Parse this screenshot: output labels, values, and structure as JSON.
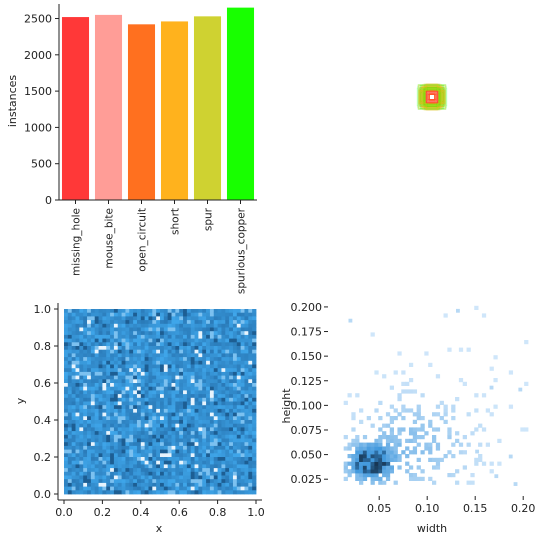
{
  "colors": {
    "axis": "#222222",
    "hist_low": "#cfe6fa",
    "hist_high": "#1a4f80",
    "uniform_base": "#3fa0e6"
  },
  "chart_data": [
    {
      "type": "bar",
      "ylabel": "instances",
      "xlabel": "",
      "ylim": [
        0,
        2700
      ],
      "yticks": [
        0,
        500,
        1000,
        1500,
        2000,
        2500
      ],
      "categories": [
        "missing_hole",
        "mouse_bite",
        "open_circuit",
        "short",
        "spur",
        "spurious_copper"
      ],
      "values": [
        2520,
        2550,
        2420,
        2460,
        2530,
        2650
      ],
      "bar_colors": [
        "#ff3838",
        "#ff9d97",
        "#ff701f",
        "#ffb21d",
        "#cfd231",
        "#18ff00"
      ]
    },
    {
      "type": "scatter",
      "description_free": true,
      "points_center": [
        0.5,
        0.5
      ],
      "box_colors": [
        "#18ff00",
        "#cfd231",
        "#ffb21d",
        "#ff701f",
        "#ff9d97",
        "#ff3838"
      ]
    },
    {
      "type": "heatmap",
      "xlabel": "x",
      "ylabel": "y",
      "xlim": [
        0,
        1
      ],
      "ylim": [
        0,
        1
      ],
      "xticks": [
        "0.0",
        "0.2",
        "0.4",
        "0.6",
        "0.8",
        "1.0"
      ],
      "yticks": [
        "0.0",
        "0.2",
        "0.4",
        "0.6",
        "0.8",
        "1.0"
      ],
      "bins": 50,
      "distribution": "uniform"
    },
    {
      "type": "heatmap",
      "xlabel": "width",
      "ylabel": "height",
      "xlim": [
        0.005,
        0.205
      ],
      "ylim": [
        0.012,
        0.205
      ],
      "xticks": [
        "0.05",
        "0.10",
        "0.15",
        "0.20"
      ],
      "yticks": [
        "0.025",
        "0.050",
        "0.075",
        "0.100",
        "0.125",
        "0.150",
        "0.175",
        "0.200"
      ],
      "xtick_values": [
        0.05,
        0.1,
        0.15,
        0.2
      ],
      "ytick_values": [
        0.025,
        0.05,
        0.075,
        0.1,
        0.125,
        0.15,
        0.175,
        0.2
      ],
      "bins": 50,
      "peak": [
        0.04,
        0.042
      ]
    }
  ]
}
